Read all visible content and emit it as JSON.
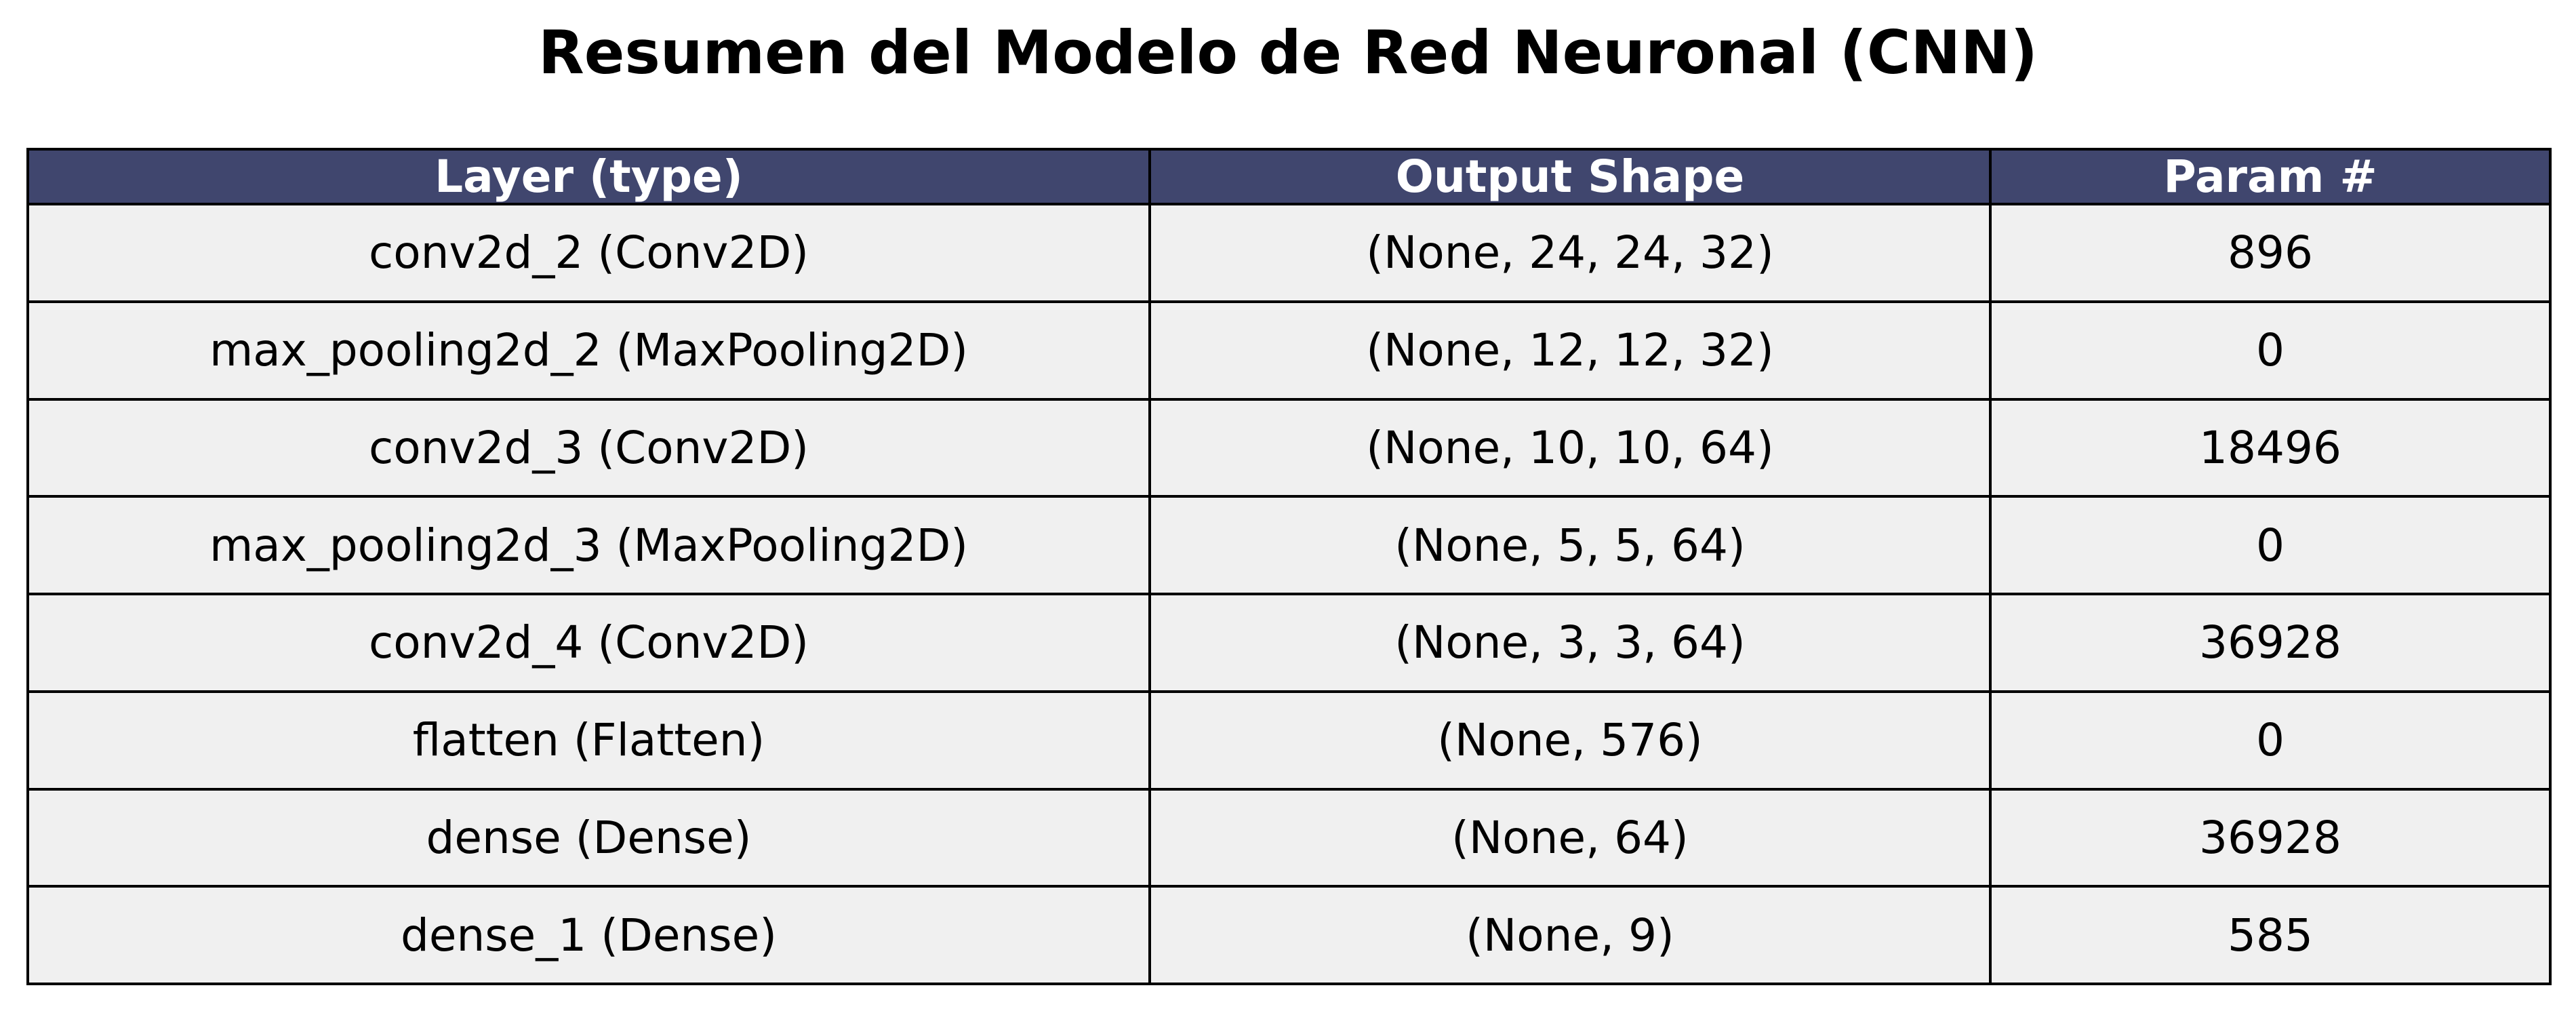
{
  "title": "Resumen del Modelo de Red Neuronal (CNN)",
  "table": {
    "headers": [
      "Layer (type)",
      "Output Shape",
      "Param #"
    ],
    "rows": [
      [
        "conv2d_2 (Conv2D)",
        "(None, 24, 24, 32)",
        "896"
      ],
      [
        "max_pooling2d_2 (MaxPooling2D)",
        "(None, 12, 12, 32)",
        "0"
      ],
      [
        "conv2d_3 (Conv2D)",
        "(None, 10, 10, 64)",
        "18496"
      ],
      [
        "max_pooling2d_3 (MaxPooling2D)",
        "(None, 5, 5, 64)",
        "0"
      ],
      [
        "conv2d_4 (Conv2D)",
        "(None, 3, 3, 64)",
        "36928"
      ],
      [
        "flatten (Flatten)",
        "(None, 576)",
        "0"
      ],
      [
        "dense (Dense)",
        "(None, 64)",
        "36928"
      ],
      [
        "dense_1 (Dense)",
        "(None, 9)",
        "585"
      ]
    ]
  },
  "colors": {
    "header_background": "#40466e",
    "header_text": "#ffffff",
    "row_background": "#f0f0f0",
    "border": "#000000"
  }
}
